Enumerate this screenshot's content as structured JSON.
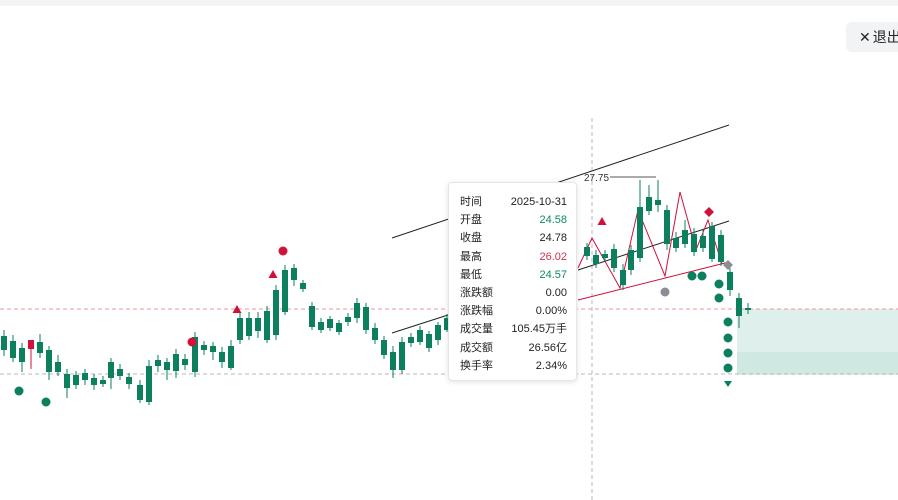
{
  "toolbar": {
    "exit_label": "退出",
    "exit_icon": "close-icon"
  },
  "colors": {
    "up": "#d0113a",
    "down": "#0b7f5e",
    "signal_red": "#d0113a",
    "signal_green": "#0b7f5e",
    "signal_gray": "#8a8d93",
    "zone": "#d9eeea"
  },
  "chart": {
    "peak_label": "27.75",
    "trend_lines": [
      {
        "id": "upper-channel",
        "color": "#222222"
      },
      {
        "id": "lower-channel",
        "color": "#222222"
      },
      {
        "id": "upper-channel-2",
        "color": "#222222"
      },
      {
        "id": "support-line",
        "color": "#d0113a"
      }
    ]
  },
  "tooltip": {
    "rows": [
      {
        "label": "时间",
        "value": "2025-10-31",
        "tone": ""
      },
      {
        "label": "开盘",
        "value": "24.58",
        "tone": "green"
      },
      {
        "label": "收盘",
        "value": "24.78",
        "tone": ""
      },
      {
        "label": "最高",
        "value": "26.02",
        "tone": "red"
      },
      {
        "label": "最低",
        "value": "24.57",
        "tone": "green"
      },
      {
        "label": "涨跌额",
        "value": "0.00",
        "tone": ""
      },
      {
        "label": "涨跌幅",
        "value": "0.00%",
        "tone": ""
      },
      {
        "label": "成交量",
        "value": "105.45万手",
        "tone": ""
      },
      {
        "label": "成交额",
        "value": "26.56亿",
        "tone": ""
      },
      {
        "label": "换手率",
        "value": "2.34%",
        "tone": ""
      }
    ]
  }
}
